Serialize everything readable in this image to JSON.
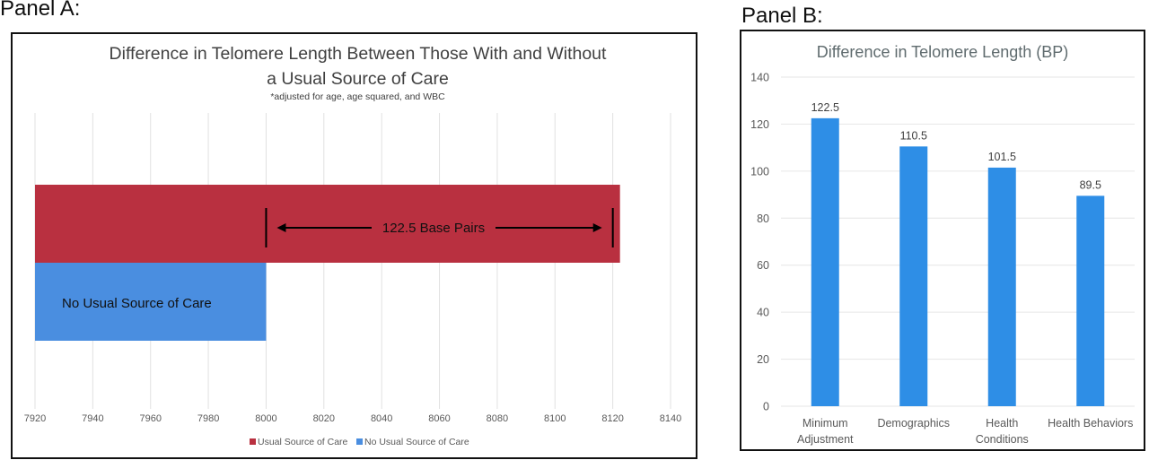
{
  "panels": {
    "a_label": "Panel A:",
    "b_label": "Panel B:"
  },
  "chart_data": [
    {
      "type": "bar",
      "orientation": "horizontal",
      "title": "Difference in Telomere Length Between Those With and Without a Usual Source of Care",
      "title_lines": [
        "Difference in Telomere Length Between Those With and Without",
        "a Usual Source of Care"
      ],
      "subtitle": "*adjusted for age, age squared, and WBC",
      "xlim": [
        7920,
        8140
      ],
      "xticks": [
        7920,
        7940,
        7960,
        7980,
        8000,
        8020,
        8040,
        8060,
        8080,
        8100,
        8120,
        8140
      ],
      "grid": true,
      "legend_position": "bottom",
      "series": [
        {
          "name": "Usual Source of Care",
          "value": 8122.5,
          "color": "#b93040"
        },
        {
          "name": "No Usual Source of Care",
          "value": 8000,
          "color": "#4a8ee0"
        }
      ],
      "annotations": {
        "bar_label": "No Usual Source of Care",
        "difference_label": "122.5 Base Pairs"
      }
    },
    {
      "type": "bar",
      "title": "Difference in Telomere Length (BP)",
      "xlabel": "",
      "ylabel": "",
      "ylim": [
        0,
        140
      ],
      "yticks": [
        0,
        20,
        40,
        60,
        80,
        100,
        120,
        140
      ],
      "grid": true,
      "color": "#2e8ee6",
      "categories": [
        [
          "Minimum",
          "Adjustment"
        ],
        [
          "Demographics"
        ],
        [
          "Health",
          "Conditions"
        ],
        [
          "Health Behaviors"
        ]
      ],
      "values": [
        122.5,
        110.5,
        101.5,
        89.5
      ],
      "value_labels": [
        "122.5",
        "110.5",
        "101.5",
        "89.5"
      ]
    }
  ]
}
